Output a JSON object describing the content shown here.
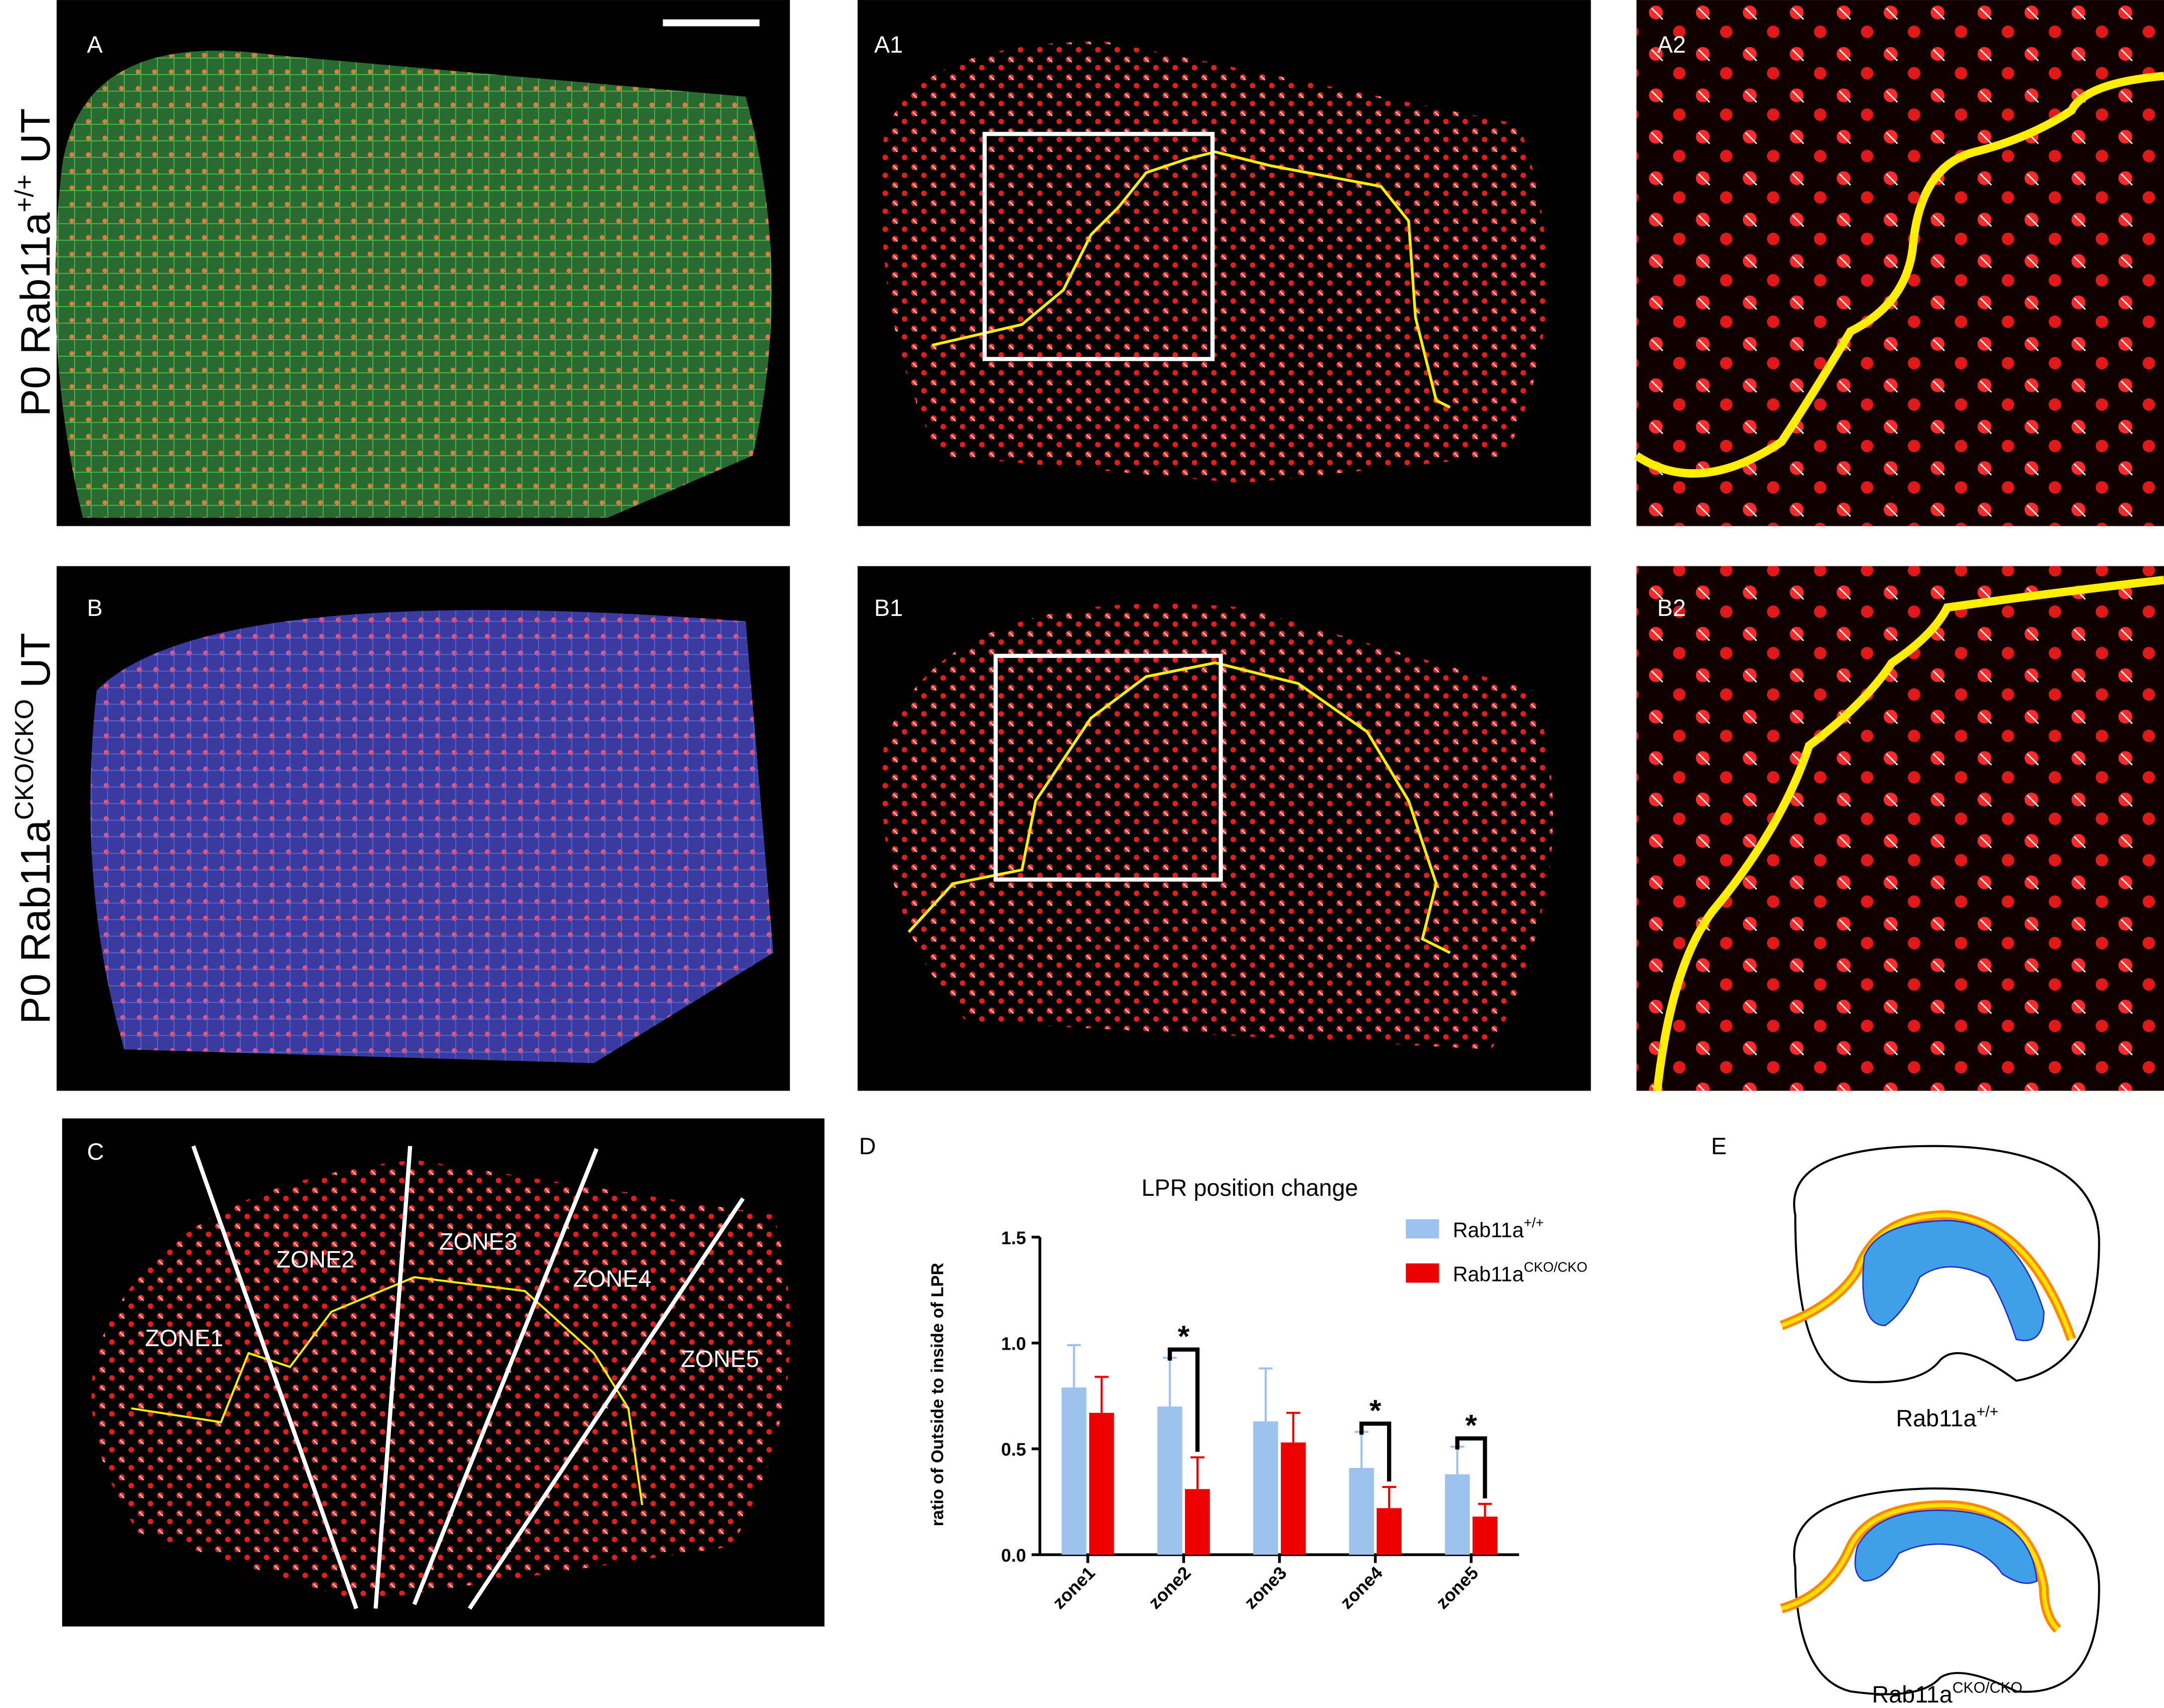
{
  "row_labels": [
    {
      "prefix": "P0 Rab11a",
      "superscript": "+/+",
      "suffix": "UT"
    },
    {
      "prefix": "P0 Rab11a",
      "superscript": "CKO/CKO",
      "suffix": "UT"
    }
  ],
  "panel_labels": {
    "a": "A",
    "a1": "A1",
    "a2": "A2",
    "b": "B",
    "b1": "B1",
    "b2": "B2",
    "c": "C",
    "d": "D",
    "e": "E"
  },
  "zone_labels": [
    "ZONE1",
    "ZONE2",
    "ZONE3",
    "ZONE4",
    "ZONE5"
  ],
  "chart_data": {
    "type": "bar",
    "title": "LPR position change",
    "y_label": "ratio of Outside to inside of LPR",
    "categories": [
      "zone1",
      "zone2",
      "zone3",
      "zone4",
      "zone5"
    ],
    "series": [
      {
        "name": "Rab11a",
        "superscript": "+/+",
        "color": "#9dc3ec",
        "values": [
          0.79,
          0.7,
          0.63,
          0.41,
          0.38
        ],
        "errors": [
          0.2,
          0.23,
          0.25,
          0.17,
          0.13
        ]
      },
      {
        "name": "Rab11a",
        "superscript": "CKO/CKO",
        "color": "#ee0000",
        "values": [
          0.67,
          0.31,
          0.53,
          0.22,
          0.18
        ],
        "errors": [
          0.17,
          0.15,
          0.14,
          0.1,
          0.06
        ]
      }
    ],
    "ylim": [
      0,
      1.5
    ],
    "yticks": [
      {
        "value": 0,
        "label": "0.0"
      },
      0.5,
      {
        "value": 1,
        "label": "1.0"
      },
      1.5
    ],
    "annotations": [
      {
        "text": "*",
        "category": 1
      },
      {
        "text": "*",
        "category": 3
      },
      {
        "text": "*",
        "category": 4
      }
    ]
  },
  "diagram_labels": [
    {
      "prefix": "Rab11a",
      "superscript": "+/+"
    },
    {
      "prefix": "Rab11a",
      "superscript": "CKO/CKO"
    }
  ]
}
